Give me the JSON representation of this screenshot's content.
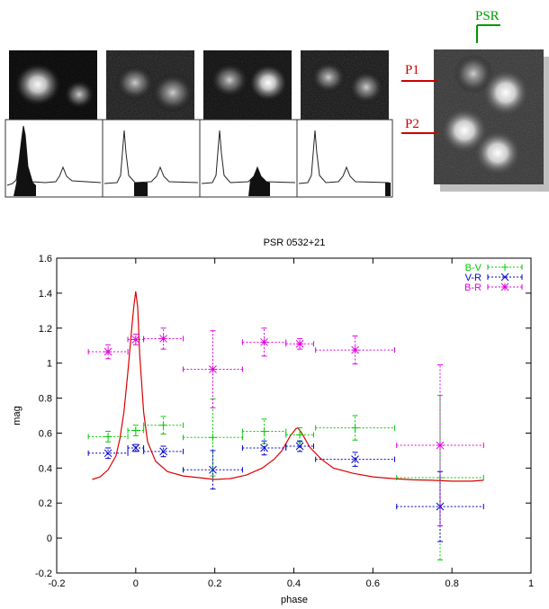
{
  "colors": {
    "bv": "#00cc00",
    "vr": "#0000cc",
    "br": "#e000e0",
    "model": "#dd0000",
    "annotation": "#cc0000",
    "psr_label": "#009900"
  },
  "top_panel": {
    "psr_label": "PSR",
    "p1_label": "P1",
    "p2_label": "P2"
  },
  "chart_data": {
    "type": "scatter",
    "title": "PSR 0532+21",
    "xlabel": "phase",
    "ylabel": "mag",
    "xlim": [
      -0.2,
      1.0
    ],
    "ylim": [
      -0.2,
      1.6
    ],
    "xticks": [
      "-0.2",
      "0",
      "0.2",
      "0.4",
      "0.6",
      "0.8",
      "1"
    ],
    "yticks": [
      "-0.2",
      "0",
      "0.2",
      "0.4",
      "0.6",
      "0.8",
      "1",
      "1.2",
      "1.4",
      "1.6"
    ],
    "grid": false,
    "legend_position": "top-right",
    "series": [
      {
        "name": "B-V",
        "color": "#00cc00",
        "marker": "plus",
        "points": [
          {
            "x": -0.07,
            "y": 0.58,
            "xerr": 0.05,
            "yerr": 0.03
          },
          {
            "x": 0.0,
            "y": 0.615,
            "xerr": 0.02,
            "yerr": 0.03
          },
          {
            "x": 0.07,
            "y": 0.645,
            "xerr": 0.05,
            "yerr": 0.05
          },
          {
            "x": 0.195,
            "y": 0.575,
            "xerr": 0.075,
            "yerr": 0.22
          },
          {
            "x": 0.325,
            "y": 0.61,
            "xerr": 0.055,
            "yerr": 0.07
          },
          {
            "x": 0.415,
            "y": 0.59,
            "xerr": 0.035,
            "yerr": 0.04
          },
          {
            "x": 0.555,
            "y": 0.63,
            "xerr": 0.1,
            "yerr": 0.07
          },
          {
            "x": 0.77,
            "y": 0.345,
            "xerr": 0.11,
            "yerr": 0.47
          }
        ]
      },
      {
        "name": "V-R",
        "color": "#0000cc",
        "marker": "cross",
        "points": [
          {
            "x": -0.07,
            "y": 0.485,
            "xerr": 0.05,
            "yerr": 0.03
          },
          {
            "x": 0.0,
            "y": 0.515,
            "xerr": 0.02,
            "yerr": 0.02
          },
          {
            "x": 0.07,
            "y": 0.495,
            "xerr": 0.05,
            "yerr": 0.03
          },
          {
            "x": 0.195,
            "y": 0.39,
            "xerr": 0.075,
            "yerr": 0.11
          },
          {
            "x": 0.325,
            "y": 0.515,
            "xerr": 0.055,
            "yerr": 0.04
          },
          {
            "x": 0.415,
            "y": 0.525,
            "xerr": 0.035,
            "yerr": 0.03
          },
          {
            "x": 0.555,
            "y": 0.45,
            "xerr": 0.1,
            "yerr": 0.04
          },
          {
            "x": 0.77,
            "y": 0.18,
            "xerr": 0.11,
            "yerr": 0.2
          }
        ]
      },
      {
        "name": "B-R",
        "color": "#e000e0",
        "marker": "star",
        "points": [
          {
            "x": -0.07,
            "y": 1.065,
            "xerr": 0.05,
            "yerr": 0.04
          },
          {
            "x": 0.0,
            "y": 1.135,
            "xerr": 0.02,
            "yerr": 0.03
          },
          {
            "x": 0.07,
            "y": 1.14,
            "xerr": 0.05,
            "yerr": 0.06
          },
          {
            "x": 0.195,
            "y": 0.965,
            "xerr": 0.075,
            "yerr": 0.22
          },
          {
            "x": 0.325,
            "y": 1.12,
            "xerr": 0.055,
            "yerr": 0.08
          },
          {
            "x": 0.415,
            "y": 1.11,
            "xerr": 0.035,
            "yerr": 0.03
          },
          {
            "x": 0.555,
            "y": 1.075,
            "xerr": 0.1,
            "yerr": 0.08
          },
          {
            "x": 0.77,
            "y": 0.53,
            "xerr": 0.11,
            "yerr": 0.46
          }
        ]
      }
    ],
    "model_curve": {
      "color": "#dd0000",
      "x": [
        -0.11,
        -0.09,
        -0.07,
        -0.05,
        -0.04,
        -0.03,
        -0.02,
        -0.01,
        -0.005,
        0.0,
        0.005,
        0.01,
        0.02,
        0.03,
        0.05,
        0.08,
        0.12,
        0.16,
        0.2,
        0.24,
        0.28,
        0.32,
        0.35,
        0.37,
        0.39,
        0.405,
        0.41,
        0.42,
        0.44,
        0.47,
        0.5,
        0.55,
        0.6,
        0.65,
        0.7,
        0.75,
        0.8,
        0.85,
        0.88
      ],
      "y": [
        0.335,
        0.35,
        0.39,
        0.47,
        0.57,
        0.72,
        0.95,
        1.2,
        1.32,
        1.41,
        1.32,
        1.05,
        0.72,
        0.55,
        0.44,
        0.38,
        0.355,
        0.345,
        0.335,
        0.34,
        0.36,
        0.4,
        0.45,
        0.5,
        0.58,
        0.625,
        0.63,
        0.6,
        0.52,
        0.45,
        0.4,
        0.37,
        0.35,
        0.34,
        0.333,
        0.33,
        0.325,
        0.325,
        0.33
      ]
    }
  }
}
